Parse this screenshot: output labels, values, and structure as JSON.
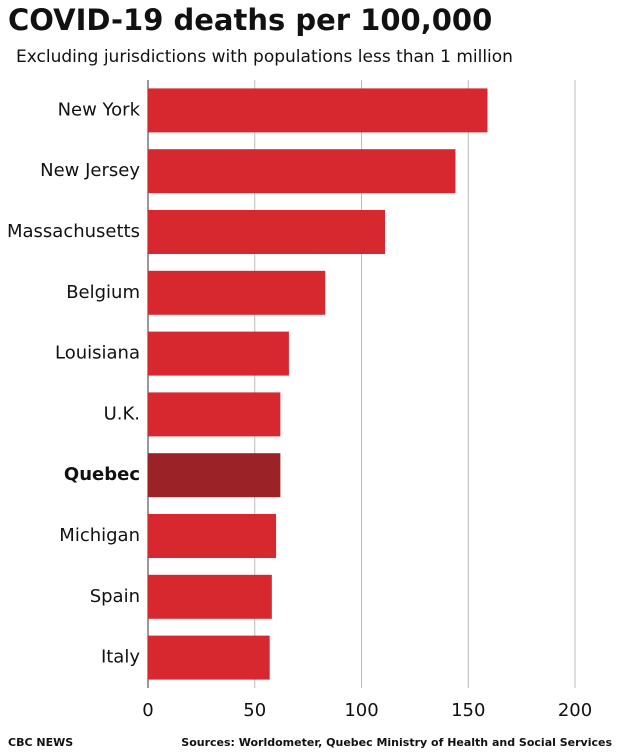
{
  "chart_data": {
    "type": "bar",
    "orientation": "horizontal",
    "title": "COVID-19 deaths per 100,000",
    "subtitle": "Excluding jurisdictions with populations less than 1 million",
    "categories": [
      "New York",
      "New Jersey",
      "Massachusetts",
      "Belgium",
      "Louisiana",
      "U.K.",
      "Quebec",
      "Michigan",
      "Spain",
      "Italy"
    ],
    "values": [
      159,
      144,
      111,
      83,
      66,
      62,
      62,
      60,
      58,
      57
    ],
    "color": "#d7282f",
    "highlight": "Quebec",
    "highlight_color": "#9b2226",
    "xlim": [
      0,
      200
    ],
    "xticks": [
      0,
      50,
      100,
      150,
      200
    ],
    "grid": true,
    "source_left": "CBC NEWS",
    "source_right": "Sources: Worldometer, Quebec Ministry of Health and Social Services"
  }
}
